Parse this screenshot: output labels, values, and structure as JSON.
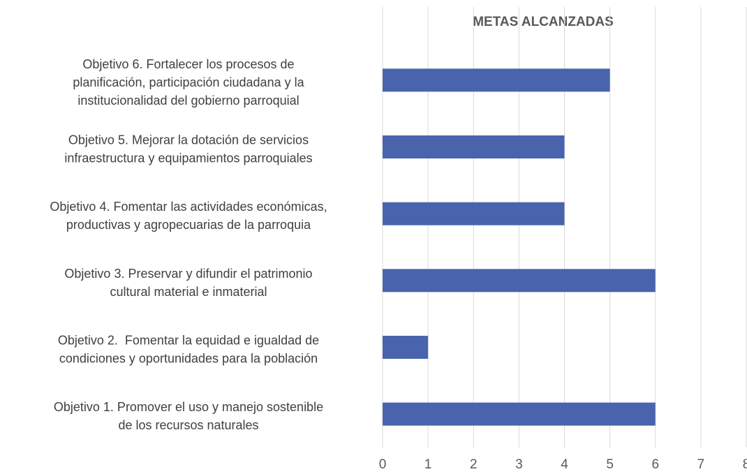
{
  "chart_data": {
    "type": "barh",
    "title": "METAS ALCANZADAS",
    "categories": [
      "Objetivo 1. Promover el uso y manejo sostenible\nde los recursos naturales",
      "Objetivo 2.  Fomentar la equidad e igualdad de\ncondiciones y oportunidades para la población",
      "Objetivo 3. Preservar y difundir el patrimonio\ncultural material e inmaterial",
      "Objetivo 4. Fomentar las actividades económicas,\nproductivas y agropecuarias de la parroquia",
      "Objetivo 5. Mejorar la dotación de servicios\ninfraestructura y equipamientos parroquiales",
      "Objetivo 6. Fortalecer los procesos de\nplanificación, participación ciudadana y la\ninstitucionalidad del gobierno parroquial"
    ],
    "values": [
      6,
      1,
      6,
      4,
      4,
      5
    ],
    "color": "#4964ad",
    "xlim": [
      0,
      8
    ],
    "xticks": [
      0,
      1,
      2,
      3,
      4,
      5,
      6,
      7,
      8
    ],
    "grid": true
  }
}
